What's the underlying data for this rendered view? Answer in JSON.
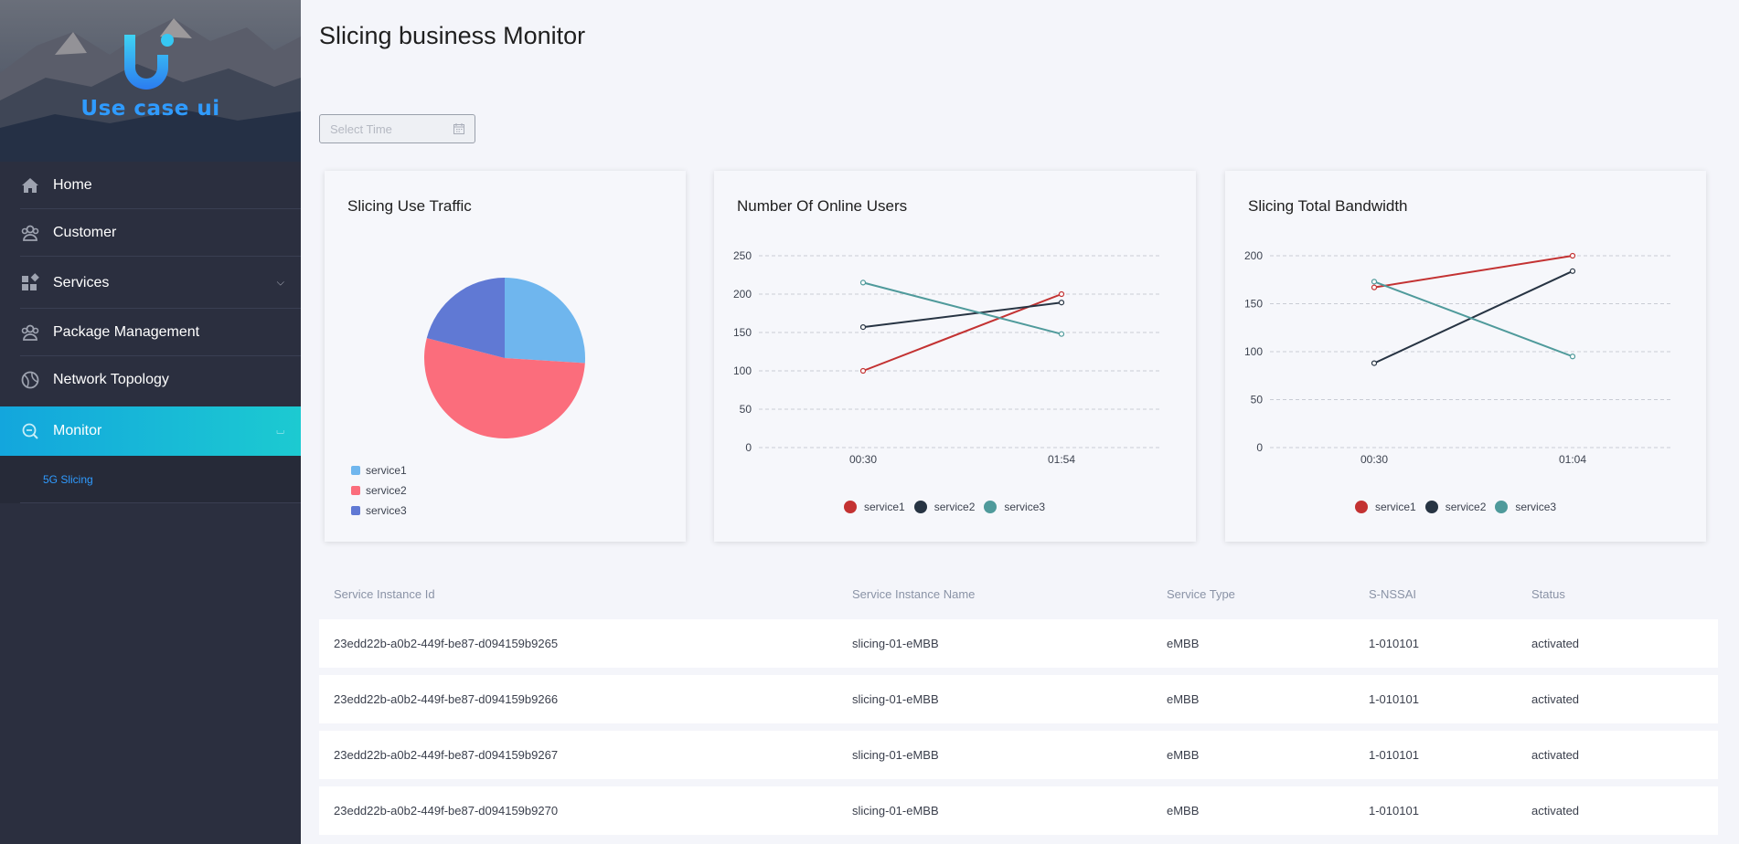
{
  "sidebar": {
    "brand": "Use case ui",
    "items": [
      {
        "label": "Home",
        "icon": "home-icon"
      },
      {
        "label": "Customer",
        "icon": "customer-icon"
      },
      {
        "label": "Services",
        "icon": "services-icon"
      },
      {
        "label": "Package Management",
        "icon": "package-icon"
      },
      {
        "label": "Network Topology",
        "icon": "topology-icon"
      },
      {
        "label": "Monitor",
        "icon": "monitor-icon"
      }
    ],
    "sub_items": [
      {
        "label": "5G Slicing"
      }
    ]
  },
  "header": {
    "title": "Slicing business Monitor",
    "time_placeholder": "Select Time"
  },
  "cards": [
    {
      "title": "Slicing Use Traffic"
    },
    {
      "title": "Number Of Online Users"
    },
    {
      "title": "Slicing Total Bandwidth"
    }
  ],
  "colors": {
    "pie_service1": "#6fb6ee",
    "pie_service2": "#fb6d7c",
    "pie_service3": "#6079d4",
    "line_service1": "#c33232",
    "line_service2": "#273443",
    "line_service3": "#4f9a9b",
    "accent": "#1cb6d8"
  },
  "chart_data": [
    {
      "type": "pie",
      "categories": [
        "service1",
        "service2",
        "service3"
      ],
      "values": [
        26,
        53,
        21
      ]
    },
    {
      "type": "line",
      "x": [
        "00:30",
        "01:54"
      ],
      "ylim": [
        0,
        250
      ],
      "yticks": [
        0,
        50,
        100,
        150,
        200,
        250
      ],
      "series": [
        {
          "name": "service1",
          "values": [
            100,
            200
          ]
        },
        {
          "name": "service2",
          "values": [
            157,
            189
          ]
        },
        {
          "name": "service3",
          "values": [
            215,
            148
          ]
        }
      ]
    },
    {
      "type": "line",
      "x": [
        "00:30",
        "01:04"
      ],
      "ylim": [
        0,
        200
      ],
      "yticks": [
        0,
        50,
        100,
        150,
        200
      ],
      "series": [
        {
          "name": "service1",
          "values": [
            167,
            200
          ]
        },
        {
          "name": "service2",
          "values": [
            88,
            184
          ]
        },
        {
          "name": "service3",
          "values": [
            173,
            95
          ]
        }
      ]
    }
  ],
  "table": {
    "columns": [
      "Service Instance Id",
      "Service Instance Name",
      "Service Type",
      "S-NSSAI",
      "Status"
    ],
    "rows": [
      [
        "23edd22b-a0b2-449f-be87-d094159b9265",
        "slicing-01-eMBB",
        "eMBB",
        "1-010101",
        "activated"
      ],
      [
        "23edd22b-a0b2-449f-be87-d094159b9266",
        "slicing-01-eMBB",
        "eMBB",
        "1-010101",
        "activated"
      ],
      [
        "23edd22b-a0b2-449f-be87-d094159b9267",
        "slicing-01-eMBB",
        "eMBB",
        "1-010101",
        "activated"
      ],
      [
        "23edd22b-a0b2-449f-be87-d094159b9270",
        "slicing-01-eMBB",
        "eMBB",
        "1-010101",
        "activated"
      ]
    ]
  }
}
